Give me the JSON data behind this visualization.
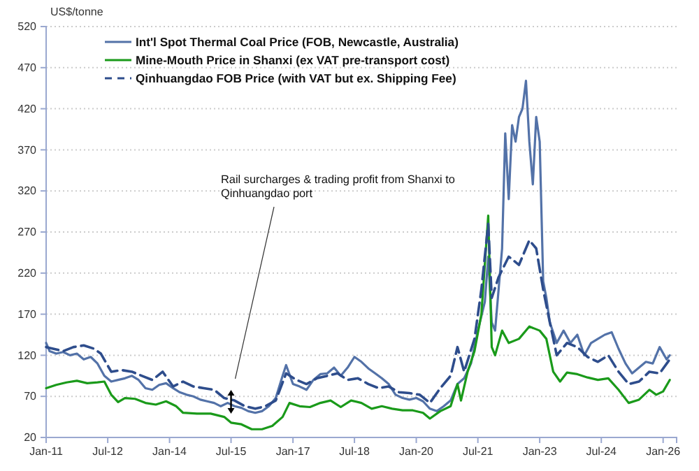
{
  "chart_data": {
    "type": "line",
    "ylabel": "US$/tonne",
    "xlim": [
      "2011-01-01",
      "2026-05-01"
    ],
    "xticks": [
      {
        "value": "2011-01",
        "label": "Jan-11"
      },
      {
        "value": "2012-07",
        "label": "Jul-12"
      },
      {
        "value": "2014-01",
        "label": "Jan-14"
      },
      {
        "value": "2015-07",
        "label": "Jul-15"
      },
      {
        "value": "2017-01",
        "label": "Jan-17"
      },
      {
        "value": "2018-07",
        "label": "Jul-18"
      },
      {
        "value": "2020-01",
        "label": "Jan-20"
      },
      {
        "value": "2021-07",
        "label": "Jul-21"
      },
      {
        "value": "2023-01",
        "label": "Jan-23"
      },
      {
        "value": "2024-07",
        "label": "Jul-24"
      },
      {
        "value": "2026-01",
        "label": "Jan-26"
      }
    ],
    "ylim": [
      20,
      520
    ],
    "yticks": [
      20,
      70,
      120,
      170,
      220,
      270,
      320,
      370,
      420,
      470,
      520
    ],
    "grid": "y",
    "legend": "top left",
    "marker": "none",
    "annotations": [
      "Rail surcharges & trading profit from Shanxi to Qinhuangdao port"
    ],
    "series": [
      {
        "name": "Int'l Spot Thermal Coal Price (FOB, Newcastle, Australia)",
        "color": "#5372a8",
        "line_style": "solid",
        "x": [
          "2011-01",
          "2011-02",
          "2011-04",
          "2011-06",
          "2011-08",
          "2011-10",
          "2011-12",
          "2012-02",
          "2012-04",
          "2012-06",
          "2012-08",
          "2012-10",
          "2012-12",
          "2013-02",
          "2013-04",
          "2013-06",
          "2013-08",
          "2013-10",
          "2013-12",
          "2014-02",
          "2014-04",
          "2014-06",
          "2014-08",
          "2014-10",
          "2014-12",
          "2015-02",
          "2015-04",
          "2015-06",
          "2015-08",
          "2015-10",
          "2015-12",
          "2016-02",
          "2016-04",
          "2016-06",
          "2016-08",
          "2016-10",
          "2016-11",
          "2017-01",
          "2017-03",
          "2017-05",
          "2017-07",
          "2017-09",
          "2017-11",
          "2018-01",
          "2018-03",
          "2018-05",
          "2018-07",
          "2018-09",
          "2018-11",
          "2019-01",
          "2019-03",
          "2019-05",
          "2019-07",
          "2019-09",
          "2019-11",
          "2020-01",
          "2020-03",
          "2020-05",
          "2020-07",
          "2020-09",
          "2020-11",
          "2021-01",
          "2021-03",
          "2021-05",
          "2021-07",
          "2021-09",
          "2021-10",
          "2021-11",
          "2021-12",
          "2022-01",
          "2022-02",
          "2022-03",
          "2022-04",
          "2022-05",
          "2022-06",
          "2022-07",
          "2022-08",
          "2022-09",
          "2022-10",
          "2022-11",
          "2022-12",
          "2023-01",
          "2023-02",
          "2023-03",
          "2023-04",
          "2023-06",
          "2023-08",
          "2023-10",
          "2023-12",
          "2024-02",
          "2024-04",
          "2024-06",
          "2024-08",
          "2024-10",
          "2024-12",
          "2025-02",
          "2025-04",
          "2025-06",
          "2025-08",
          "2025-10",
          "2025-12",
          "2026-02",
          "2026-03"
        ],
        "values": [
          135,
          125,
          122,
          124,
          120,
          122,
          115,
          118,
          110,
          95,
          88,
          90,
          92,
          95,
          90,
          80,
          78,
          84,
          86,
          80,
          75,
          72,
          70,
          66,
          64,
          62,
          58,
          62,
          58,
          56,
          52,
          50,
          52,
          58,
          68,
          95,
          108,
          85,
          82,
          78,
          90,
          97,
          98,
          105,
          95,
          105,
          118,
          112,
          104,
          98,
          92,
          85,
          72,
          68,
          66,
          68,
          64,
          55,
          52,
          58,
          65,
          85,
          92,
          110,
          150,
          185,
          240,
          160,
          150,
          200,
          250,
          390,
          310,
          400,
          380,
          410,
          420,
          454,
          380,
          328,
          410,
          380,
          210,
          190,
          160,
          135,
          150,
          135,
          145,
          120,
          135,
          140,
          145,
          148,
          128,
          110,
          98,
          105,
          112,
          110,
          130,
          115,
          120
        ]
      },
      {
        "name": "Mine-Mouth Price in Shanxi (ex VAT pre-transport cost)",
        "color": "#1a9a1a",
        "line_style": "solid",
        "x": [
          "2011-01",
          "2011-04",
          "2011-07",
          "2011-10",
          "2012-01",
          "2012-04",
          "2012-06",
          "2012-08",
          "2012-10",
          "2012-12",
          "2013-03",
          "2013-06",
          "2013-09",
          "2013-12",
          "2014-03",
          "2014-05",
          "2014-09",
          "2015-01",
          "2015-05",
          "2015-07",
          "2015-10",
          "2016-01",
          "2016-04",
          "2016-07",
          "2016-10",
          "2016-12",
          "2017-03",
          "2017-06",
          "2017-09",
          "2017-12",
          "2018-03",
          "2018-06",
          "2018-09",
          "2018-12",
          "2019-03",
          "2019-06",
          "2019-09",
          "2019-12",
          "2020-03",
          "2020-05",
          "2020-08",
          "2020-11",
          "2021-01",
          "2021-02",
          "2021-04",
          "2021-06",
          "2021-08",
          "2021-10",
          "2021-11",
          "2021-12",
          "2022-02",
          "2022-04",
          "2022-07",
          "2022-10",
          "2023-01",
          "2023-03",
          "2023-05",
          "2023-07",
          "2023-09",
          "2023-12",
          "2024-03",
          "2024-06",
          "2024-09",
          "2024-12",
          "2025-03",
          "2025-06",
          "2025-09",
          "2025-11",
          "2026-01",
          "2026-03"
        ],
        "values": [
          80,
          84,
          87,
          89,
          86,
          87,
          88,
          72,
          63,
          68,
          67,
          62,
          60,
          64,
          58,
          50,
          49,
          49,
          45,
          38,
          36,
          30,
          30,
          34,
          45,
          62,
          58,
          57,
          62,
          65,
          57,
          65,
          62,
          55,
          58,
          55,
          53,
          53,
          50,
          43,
          52,
          58,
          85,
          65,
          100,
          125,
          170,
          290,
          130,
          120,
          150,
          135,
          140,
          155,
          150,
          140,
          100,
          88,
          99,
          97,
          93,
          90,
          92,
          78,
          62,
          66,
          78,
          72,
          76,
          90
        ]
      },
      {
        "name": "Qinhuangdao FOB Price (with VAT but ex. Shipping Fee)",
        "color": "#2e4d8c",
        "line_style": "dashed",
        "x": [
          "2011-01",
          "2011-06",
          "2011-09",
          "2011-12",
          "2012-03",
          "2012-05",
          "2012-08",
          "2012-11",
          "2013-02",
          "2013-05",
          "2013-08",
          "2013-11",
          "2014-02",
          "2014-05",
          "2014-08",
          "2014-11",
          "2015-02",
          "2015-05",
          "2015-08",
          "2015-11",
          "2016-02",
          "2016-05",
          "2016-08",
          "2016-11",
          "2017-02",
          "2017-05",
          "2017-08",
          "2017-11",
          "2018-02",
          "2018-05",
          "2018-08",
          "2018-11",
          "2019-02",
          "2019-05",
          "2019-08",
          "2019-11",
          "2020-02",
          "2020-05",
          "2020-08",
          "2020-11",
          "2021-01",
          "2021-03",
          "2021-06",
          "2021-08",
          "2021-10",
          "2021-11",
          "2022-01",
          "2022-04",
          "2022-07",
          "2022-10",
          "2022-12",
          "2023-02",
          "2023-04",
          "2023-06",
          "2023-09",
          "2023-12",
          "2024-03",
          "2024-06",
          "2024-09",
          "2024-12",
          "2025-03",
          "2025-06",
          "2025-09",
          "2025-12",
          "2026-03"
        ],
        "values": [
          130,
          125,
          130,
          132,
          128,
          122,
          100,
          102,
          100,
          95,
          90,
          100,
          82,
          88,
          82,
          80,
          78,
          68,
          65,
          58,
          55,
          58,
          65,
          98,
          90,
          85,
          92,
          95,
          98,
          90,
          92,
          85,
          80,
          82,
          75,
          74,
          72,
          62,
          80,
          95,
          130,
          100,
          140,
          200,
          280,
          190,
          215,
          240,
          230,
          260,
          250,
          200,
          160,
          120,
          135,
          130,
          118,
          112,
          120,
          100,
          85,
          88,
          100,
          98,
          115
        ]
      }
    ]
  }
}
